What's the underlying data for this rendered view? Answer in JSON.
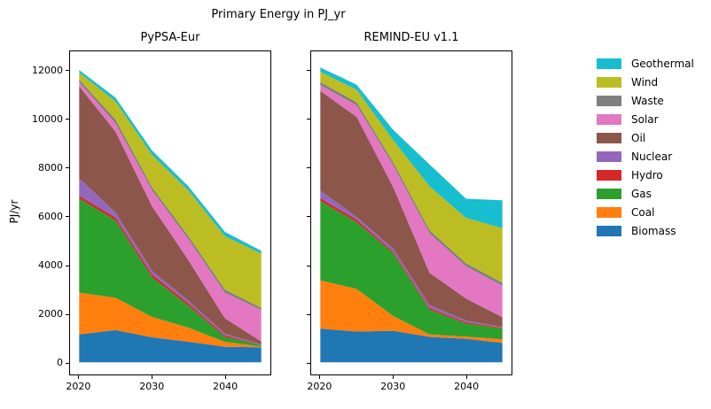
{
  "figure_title": "Primary Energy in PJ_yr",
  "ylabel": "PJ/yr",
  "colors": {
    "Biomass": "#1f77b4",
    "Coal": "#ff7f0e",
    "Gas": "#2ca02c",
    "Hydro": "#d62728",
    "Nuclear": "#9467bd",
    "Oil": "#8c564b",
    "Solar": "#e377c2",
    "Waste": "#7f7f7f",
    "Wind": "#bcbd22",
    "Geothermal": "#17becf"
  },
  "legend": {
    "position": "outside-right-top",
    "frame": false,
    "entries": [
      "Geothermal",
      "Wind",
      "Waste",
      "Solar",
      "Oil",
      "Nuclear",
      "Hydro",
      "Gas",
      "Coal",
      "Biomass"
    ]
  },
  "axis": {
    "x_ticks": [
      2020,
      2030,
      2040
    ],
    "y_ticks": [
      0,
      2000,
      4000,
      6000,
      8000,
      10000,
      12000
    ],
    "xlim": [
      2018.75,
      2046.25
    ],
    "ylim": [
      -500,
      12820
    ],
    "grid": false
  },
  "chart_data": [
    {
      "type": "area",
      "stacked": true,
      "title": "PyPSA-Eur",
      "xlabel": "",
      "ylabel": "PJ/yr",
      "x": [
        2020,
        2025,
        2030,
        2035,
        2040,
        2045
      ],
      "series": [
        {
          "name": "Biomass",
          "values": [
            1150,
            1330,
            1030,
            850,
            640,
            620
          ]
        },
        {
          "name": "Coal",
          "values": [
            1720,
            1330,
            845,
            580,
            205,
            30
          ]
        },
        {
          "name": "Gas",
          "values": [
            3880,
            3190,
            1635,
            910,
            205,
            60
          ]
        },
        {
          "name": "Hydro",
          "values": [
            120,
            120,
            120,
            100,
            60,
            10
          ]
        },
        {
          "name": "Nuclear",
          "values": [
            720,
            210,
            145,
            100,
            75,
            20
          ]
        },
        {
          "name": "Oil",
          "values": [
            3790,
            3330,
            2660,
            1670,
            630,
            120
          ]
        },
        {
          "name": "Solar",
          "values": [
            170,
            340,
            665,
            870,
            1060,
            1300
          ]
        },
        {
          "name": "Waste",
          "values": [
            110,
            150,
            120,
            120,
            125,
            80
          ]
        },
        {
          "name": "Wind",
          "values": [
            290,
            750,
            1330,
            1885,
            2200,
            2240
          ]
        },
        {
          "name": "Geothermal",
          "values": [
            100,
            160,
            185,
            170,
            180,
            120
          ]
        }
      ]
    },
    {
      "type": "area",
      "stacked": true,
      "title": "REMIND-EU v1.1",
      "xlabel": "",
      "ylabel": "PJ/yr",
      "x": [
        2020,
        2025,
        2030,
        2035,
        2040,
        2045
      ],
      "series": [
        {
          "name": "Biomass",
          "values": [
            1390,
            1270,
            1300,
            1050,
            970,
            800
          ]
        },
        {
          "name": "Coal",
          "values": [
            1995,
            1755,
            605,
            100,
            90,
            150
          ]
        },
        {
          "name": "Gas",
          "values": [
            3265,
            2755,
            2600,
            1025,
            540,
            450
          ]
        },
        {
          "name": "Hydro",
          "values": [
            125,
            100,
            60,
            65,
            60,
            30
          ]
        },
        {
          "name": "Nuclear",
          "values": [
            300,
            120,
            120,
            120,
            60,
            30
          ]
        },
        {
          "name": "Oil",
          "values": [
            4115,
            4115,
            2540,
            1330,
            910,
            400
          ]
        },
        {
          "name": "Solar",
          "values": [
            240,
            480,
            910,
            1630,
            1330,
            1300
          ]
        },
        {
          "name": "Waste",
          "values": [
            120,
            120,
            120,
            125,
            120,
            120
          ]
        },
        {
          "name": "Wind",
          "values": [
            425,
            520,
            905,
            1815,
            1875,
            2250
          ]
        },
        {
          "name": "Geothermal",
          "values": [
            180,
            210,
            425,
            900,
            790,
            1150
          ]
        }
      ]
    }
  ]
}
